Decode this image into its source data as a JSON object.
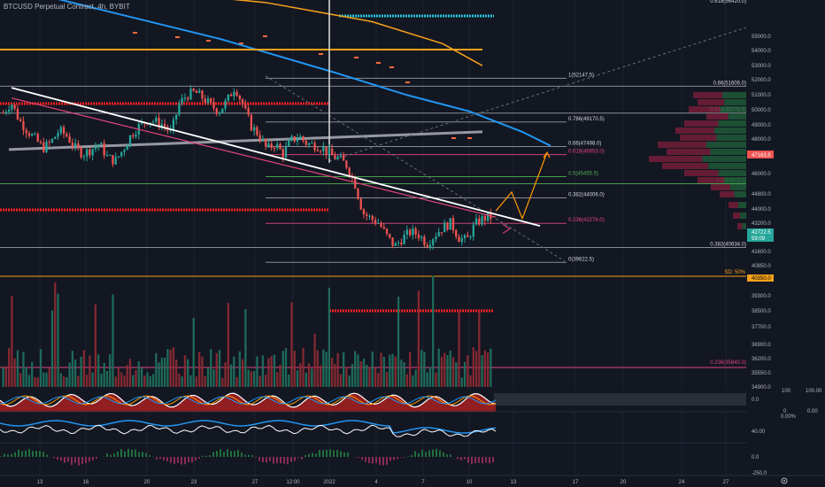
{
  "header": {
    "symbol": "BTCUSD Perpetual Contract, 4h, BYBIT"
  },
  "colors": {
    "background": "#131722",
    "up": "#26a69a",
    "down": "#ef5350",
    "ma_blue": "#2196f3",
    "ma_orange": "#f7a21b",
    "red_dotted": "#ff2020",
    "pink_line": "#e0457b",
    "price_badge": "#26a69a",
    "fib_badge": "#ef5350",
    "support_badge": "#f7a21b"
  },
  "price_axis": {
    "ticks": [
      "55000.0",
      "54000.0",
      "53000.0",
      "52000.0",
      "51000.0",
      "50000.0",
      "49000.0",
      "48000.0",
      "46000.0",
      "44800.0",
      "44000.0",
      "43200.0",
      "41600.0",
      "40850.0",
      "39300.0",
      "38500.0",
      "37700.0",
      "36900.0",
      "36200.0",
      "35550.0",
      "34900.0"
    ],
    "last_price": "42722.5",
    "countdown": "59:09",
    "fib_badge": "47163.5",
    "support_badge": "40350.0",
    "sd_label": "SD: 50%"
  },
  "time_axis": {
    "ticks": [
      "13",
      "16",
      "20",
      "23",
      "27",
      "12:00",
      "2022",
      "4",
      "7",
      "10",
      "13",
      "17",
      "20",
      "24",
      "27"
    ],
    "period_settings_icon": "gear-icon"
  },
  "fib_labels": [
    {
      "text": "1(52147.5)",
      "value": 52147.5
    },
    {
      "text": "0.786(49170.5)",
      "value": 49170.5
    },
    {
      "text": "0.66(47498.0)",
      "value": 47498
    },
    {
      "text": "0.618(46953.0)",
      "value": 46953
    },
    {
      "text": "0.5(45455.5)",
      "value": 45455.5
    },
    {
      "text": "0.382(44006.0)",
      "value": 44006
    },
    {
      "text": "0.236(42276.0)",
      "value": 42276
    },
    {
      "text": "0.382(40634.0)",
      "value": 40634
    },
    {
      "text": "0(39622.5)",
      "value": 39622.5
    },
    {
      "text": "0.66(51606.0)",
      "value": 51606
    },
    {
      "text": "0.618(49775.5)",
      "value": 49775.5
    },
    {
      "text": "0.5(44973.0)",
      "value": 44973
    },
    {
      "text": "0.236(35840.0)",
      "value": 35840
    },
    {
      "text": "0.618(56420.0)",
      "value": 56420
    }
  ],
  "oscillators": {
    "panel1_labels": [
      "100",
      "100.00",
      "0.0",
      "0",
      "0.00",
      "0.00%"
    ],
    "panel2_labels": [
      "40.00"
    ],
    "panel3_labels": [
      "0.0",
      "-250.0"
    ]
  },
  "chart_data": {
    "type": "candlestick",
    "price_range": [
      34900,
      56900
    ],
    "candles_count": 170,
    "close_path": [
      49800,
      50500,
      49300,
      48600,
      48000,
      47400,
      47800,
      48600,
      48200,
      47400,
      47000,
      47300,
      47700,
      46800,
      46500,
      47300,
      48300,
      48900,
      49300,
      49200,
      49000,
      48400,
      50400,
      51000,
      51200,
      50800,
      50300,
      49900,
      50600,
      51600,
      50300,
      48900,
      48300,
      47300,
      47700,
      47000,
      47900,
      48200,
      47700,
      47600,
      47400,
      46900,
      46700,
      46200,
      45000,
      43000,
      42600,
      42300,
      41400,
      40700,
      41300,
      41700,
      41500,
      40900,
      41500,
      42000,
      42300,
      41300,
      41100,
      42200,
      42600,
      42700
    ],
    "moving_averages": [
      {
        "color": "ma_blue",
        "points": [
          [
            0,
            58500
          ],
          [
            250,
            54800
          ],
          [
            380,
            52500
          ],
          [
            460,
            51000
          ],
          [
            530,
            49900
          ],
          [
            590,
            48500
          ],
          [
            622,
            47550
          ]
        ]
      },
      {
        "color": "ma_orange",
        "points": [
          [
            0,
            59000
          ],
          [
            300,
            57300
          ],
          [
            420,
            56000
          ],
          [
            500,
            54500
          ],
          [
            545,
            53000
          ]
        ]
      },
      {
        "color": "ma_orange_flat",
        "points": [
          [
            0,
            54100
          ],
          [
            545,
            54100
          ]
        ]
      },
      {
        "color": "grey",
        "points": [
          [
            10,
            47300
          ],
          [
            545,
            48500
          ]
        ]
      }
    ],
    "trendlines": [
      {
        "name": "white-descending",
        "points": [
          [
            13,
            51500
          ],
          [
            610,
            42100
          ]
        ]
      },
      {
        "name": "pink-descending",
        "points": [
          [
            13,
            50800
          ],
          [
            560,
            42700
          ]
        ]
      },
      {
        "name": "projection-orange",
        "points": [
          [
            560,
            43100
          ],
          [
            578,
            44400
          ],
          [
            590,
            42600
          ],
          [
            618,
            47100
          ]
        ]
      }
    ],
    "volume_range": [
      0,
      100
    ]
  }
}
